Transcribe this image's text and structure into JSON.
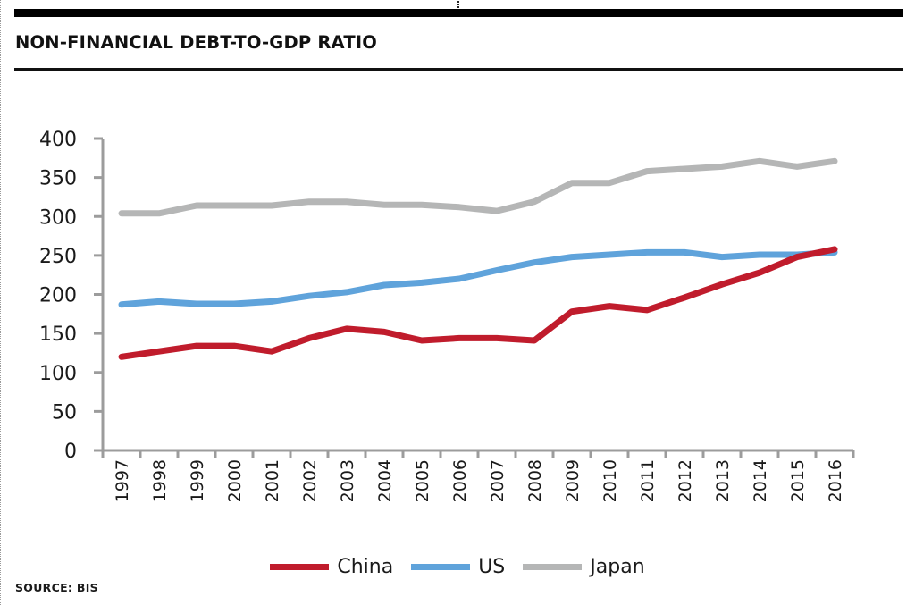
{
  "header": {
    "title": "NON-FINANCIAL DEBT-TO-GDP RATIO"
  },
  "footer": {
    "source": "SOURCE: BIS"
  },
  "colors": {
    "china": "#c01c2c",
    "us": "#5fa3db",
    "japan": "#b5b6b6",
    "axis": "#9c9c9c"
  },
  "chart_data": {
    "type": "line",
    "title": "NON-FINANCIAL DEBT-TO-GDP RATIO",
    "xlabel": "",
    "ylabel": "",
    "ylim": [
      0,
      400
    ],
    "yticks": [
      "0",
      "50",
      "100",
      "150",
      "200",
      "250",
      "300",
      "350",
      "400"
    ],
    "grid": false,
    "legend_position": "bottom-center",
    "categories": [
      "1997",
      "1998",
      "1999",
      "2000",
      "2001",
      "2002",
      "2003",
      "2004",
      "2005",
      "2006",
      "2007",
      "2008",
      "2009",
      "2010",
      "2011",
      "2012",
      "2013",
      "2014",
      "2015",
      "2016"
    ],
    "series": [
      {
        "name": "China",
        "color": "#c01c2c",
        "values": [
          120,
          127,
          134,
          134,
          127,
          144,
          156,
          152,
          141,
          144,
          144,
          141,
          178,
          185,
          180,
          196,
          213,
          228,
          248,
          258
        ]
      },
      {
        "name": "US",
        "color": "#5fa3db",
        "values": [
          187,
          191,
          188,
          188,
          191,
          198,
          203,
          212,
          215,
          220,
          231,
          241,
          248,
          251,
          254,
          254,
          248,
          251,
          251,
          254
        ]
      },
      {
        "name": "Japan",
        "color": "#b5b6b6",
        "values": [
          304,
          304,
          314,
          314,
          314,
          319,
          319,
          315,
          315,
          312,
          307,
          319,
          343,
          343,
          358,
          361,
          364,
          371,
          364,
          371
        ]
      }
    ],
    "source": "SOURCE: BIS"
  }
}
